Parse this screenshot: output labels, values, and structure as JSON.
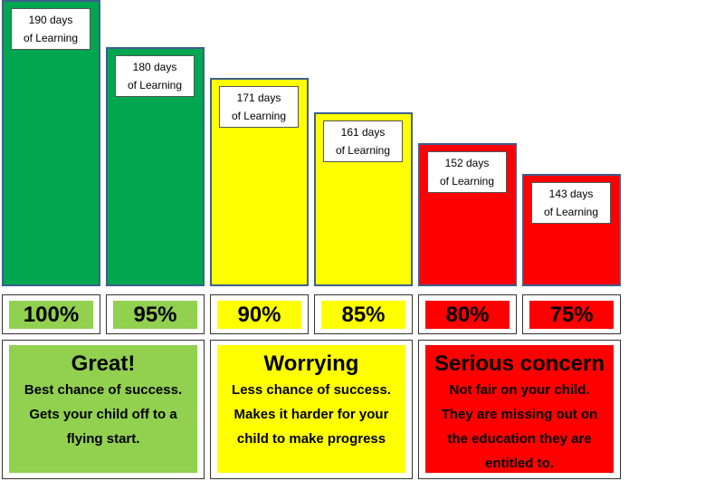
{
  "colors": {
    "green": "#00a650",
    "yellow": "#ffff00",
    "red": "#ff0000",
    "light_green": "#92d050",
    "bar_border": "#3d5f8f"
  },
  "chart_data": {
    "type": "bar",
    "categories": [
      "100%",
      "95%",
      "90%",
      "85%",
      "80%",
      "75%"
    ],
    "values": [
      190,
      180,
      171,
      161,
      152,
      143
    ],
    "value_labels": [
      [
        "190 days",
        "of Learning"
      ],
      [
        "180 days",
        "of Learning"
      ],
      [
        "171 days",
        "of Learning"
      ],
      [
        "161 days",
        "of Learning"
      ],
      [
        "152 days",
        "of Learning"
      ],
      [
        "143 days",
        "of Learning"
      ]
    ],
    "bar_colors": [
      "#00a650",
      "#00a650",
      "#ffff00",
      "#ffff00",
      "#ff0000",
      "#ff0000"
    ],
    "band_colors": [
      "#92d050",
      "#92d050",
      "#ffff00",
      "#ffff00",
      "#ff0000",
      "#ff0000"
    ],
    "title": "",
    "xlabel": "",
    "ylabel": "",
    "ylim": [
      0,
      190
    ],
    "grid": false
  },
  "messages": [
    {
      "title": "Great!",
      "lines": [
        "Best chance of success.",
        "Gets your child off to a",
        "flying start."
      ],
      "color": "#92d050",
      "text_color": "#000000"
    },
    {
      "title": "Worrying",
      "lines": [
        "Less chance of success.",
        "Makes it harder for your",
        "child to make progress"
      ],
      "color": "#ffff00",
      "text_color": "#000000"
    },
    {
      "title": "Serious concern",
      "lines": [
        "Not fair on your child.",
        "They are missing out on",
        "the education they are",
        "entitled to."
      ],
      "color": "#ff0000",
      "text_color": "#000000"
    }
  ]
}
